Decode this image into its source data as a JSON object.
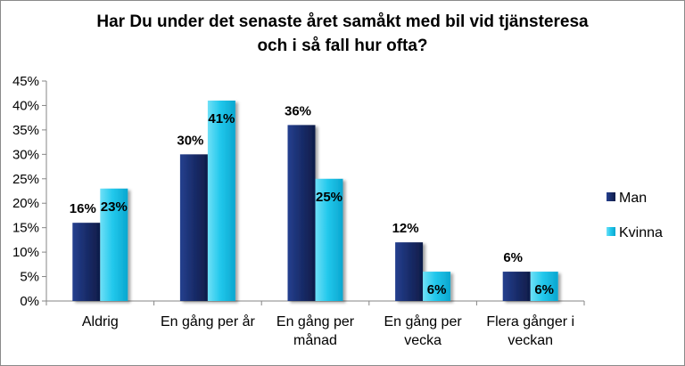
{
  "chart_data": {
    "type": "bar",
    "title_lines": [
      "Har Du under det senaste året samåkt med bil vid tjänsteresa",
      "och i så fall hur ofta?"
    ],
    "categories": [
      [
        "Aldrig"
      ],
      [
        "En gång per år"
      ],
      [
        "En gång per",
        "månad"
      ],
      [
        "En gång per",
        "vecka"
      ],
      [
        "Flera gånger i",
        "veckan"
      ]
    ],
    "series": [
      {
        "name": "Man",
        "values": [
          16,
          30,
          36,
          12,
          6
        ],
        "labels": [
          "16%",
          "30%",
          "36%",
          "12%",
          "6%"
        ],
        "color": "#1a2e6e"
      },
      {
        "name": "Kvinna",
        "values": [
          23,
          41,
          25,
          6,
          6
        ],
        "labels": [
          "23%",
          "41%",
          "25%",
          "6%",
          "6%"
        ],
        "color": "#1ec8ec"
      }
    ],
    "y_ticks": [
      "0%",
      "5%",
      "10%",
      "15%",
      "20%",
      "25%",
      "30%",
      "35%",
      "40%",
      "45%"
    ],
    "ylim": [
      0,
      45
    ],
    "legend_position": "right",
    "grid": false
  }
}
